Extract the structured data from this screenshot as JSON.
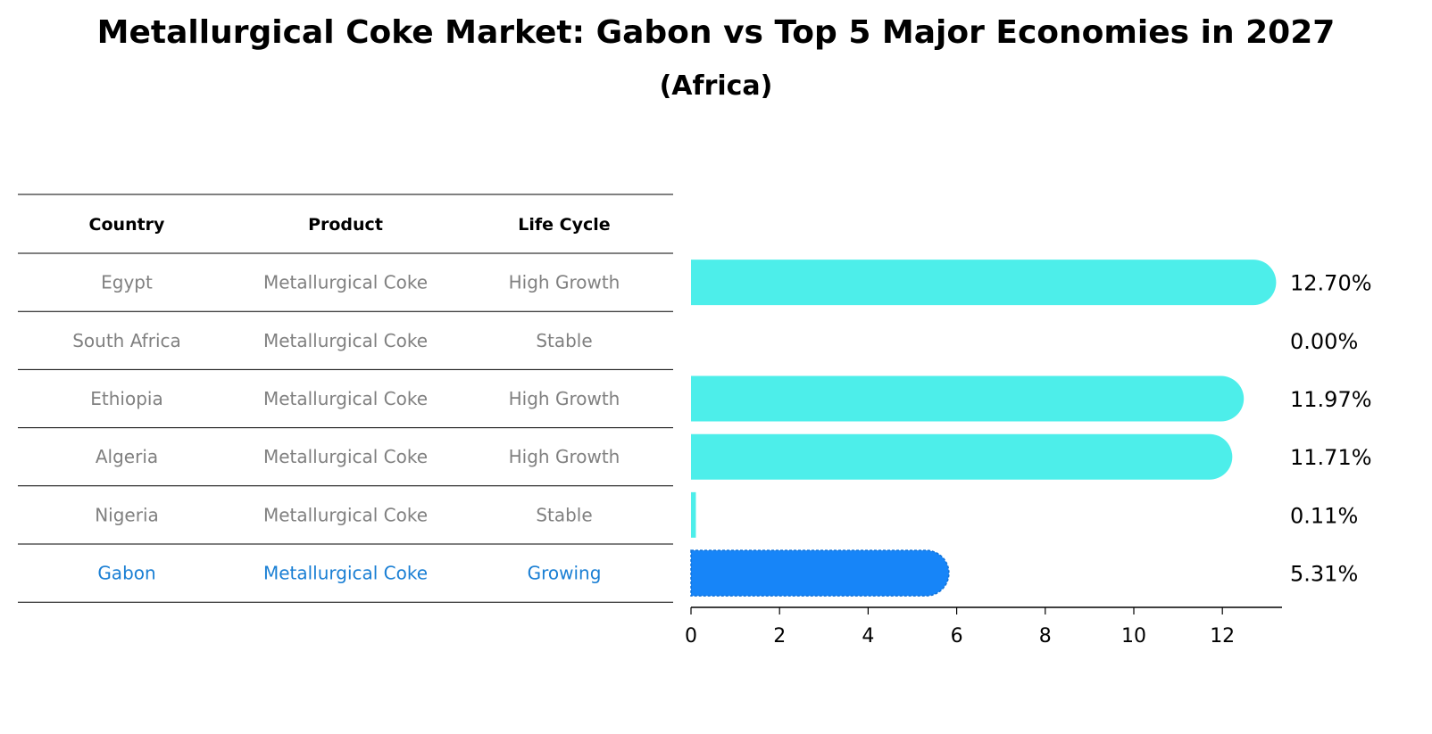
{
  "title": "Metallurgical Coke Market: Gabon vs Top 5 Major Economies in 2027",
  "subtitle": "(Africa)",
  "colors": {
    "bar": "#4deeea",
    "highlight_bar": "#1785f8",
    "highlight_text": "#1a7fd4",
    "muted_text": "#808080"
  },
  "table": {
    "headers": [
      "Country",
      "Product",
      "Life Cycle"
    ],
    "rows": [
      {
        "country": "Egypt",
        "product": "Metallurgical Coke",
        "life_cycle": "High Growth",
        "highlight": false
      },
      {
        "country": "South Africa",
        "product": "Metallurgical Coke",
        "life_cycle": "Stable",
        "highlight": false
      },
      {
        "country": "Ethiopia",
        "product": "Metallurgical Coke",
        "life_cycle": "High Growth",
        "highlight": false
      },
      {
        "country": "Algeria",
        "product": "Metallurgical Coke",
        "life_cycle": "High Growth",
        "highlight": false
      },
      {
        "country": "Nigeria",
        "product": "Metallurgical Coke",
        "life_cycle": "Stable",
        "highlight": false
      },
      {
        "country": "Gabon",
        "product": "Metallurgical Coke",
        "life_cycle": "Growing",
        "highlight": true
      }
    ]
  },
  "chart_data": {
    "type": "bar",
    "orientation": "horizontal",
    "categories": [
      "Egypt",
      "South Africa",
      "Ethiopia",
      "Algeria",
      "Nigeria",
      "Gabon"
    ],
    "values": [
      12.7,
      0.0,
      11.97,
      11.71,
      0.11,
      5.31
    ],
    "value_labels": [
      "12.70%",
      "0.00%",
      "11.97%",
      "11.71%",
      "0.11%",
      "5.31%"
    ],
    "highlight_category": "Gabon",
    "xlim": [
      0,
      13.4
    ],
    "xticks": [
      0,
      2,
      4,
      6,
      8,
      10,
      12
    ],
    "xtick_labels": [
      "0",
      "2",
      "4",
      "6",
      "8",
      "10",
      "12"
    ],
    "xlabel": "",
    "ylabel": "",
    "grid": false
  }
}
